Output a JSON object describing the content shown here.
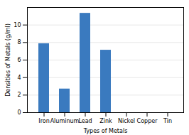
{
  "chart_data": {
    "type": "bar",
    "xlabel": "Types of Metals",
    "ylabel": "Densities of Metals (g/ml)",
    "categories": [
      "Iron",
      "Aluminum",
      "Lead",
      "Zink",
      "Nickel",
      "Copper",
      "Tin"
    ],
    "values": [
      7.87,
      2.7,
      11.34,
      7.13,
      0.0,
      0.0,
      0.0
    ],
    "color": "#3a7abf",
    "ylim": [
      0,
      12
    ],
    "yticks": [
      0,
      2,
      4,
      6,
      8,
      10
    ],
    "grid": true
  }
}
